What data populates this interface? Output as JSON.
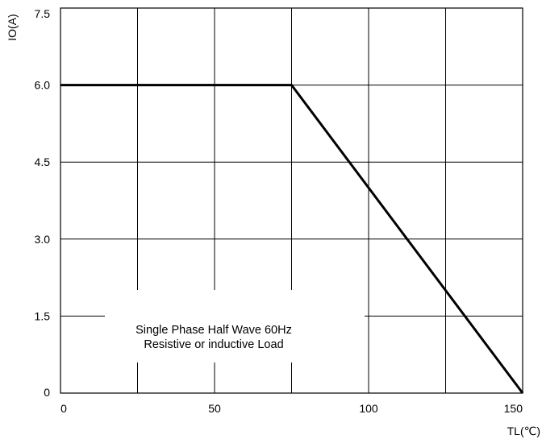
{
  "chart_data": {
    "type": "line",
    "xlabel": "TL(℃)",
    "ylabel": "IO(A)",
    "xlim": [
      0,
      150
    ],
    "ylim": [
      0,
      7.5
    ],
    "x_ticks": [
      0,
      25,
      50,
      75,
      100,
      125,
      150
    ],
    "y_ticks": [
      0,
      1.5,
      3.0,
      4.5,
      6.0,
      7.5
    ],
    "x_tick_labels": [
      "0",
      "",
      "50",
      "",
      "100",
      "",
      "150"
    ],
    "y_tick_labels": [
      "0",
      "1.5",
      "3.0",
      "4.5",
      "6.0",
      "7.5"
    ],
    "grid": true,
    "series": [
      {
        "x": [
          0,
          75,
          150
        ],
        "y": [
          6.0,
          6.0,
          0
        ]
      }
    ],
    "annotations": [
      "Single Phase Half Wave 60Hz",
      "Resistive or inductive Load"
    ]
  }
}
